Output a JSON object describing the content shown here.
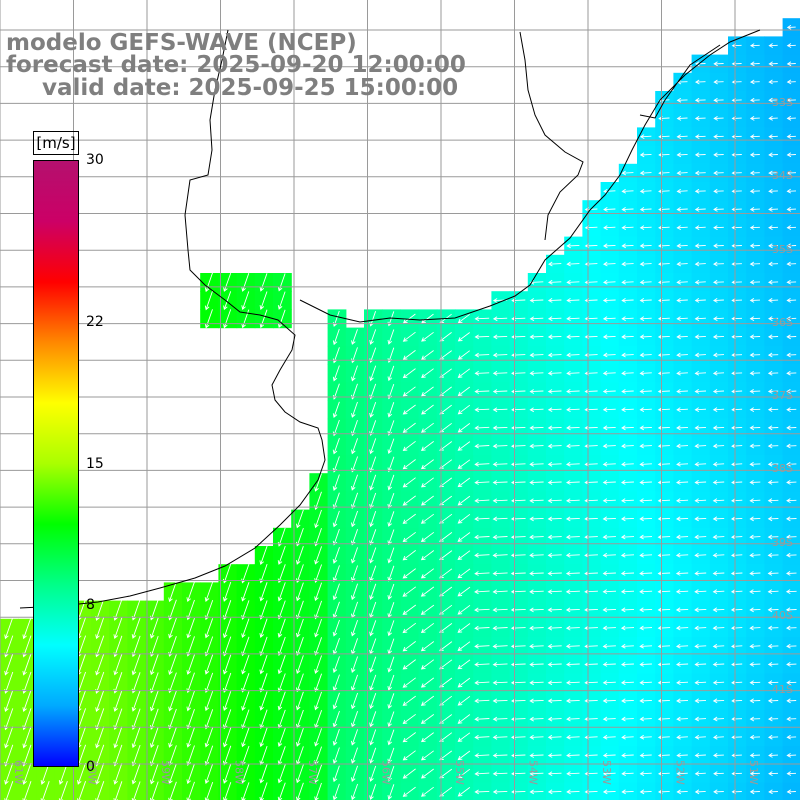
{
  "title": {
    "line1": "modelo GEFS-WAVE (NCEP)",
    "line2": "forecast date: 2025-09-20 12:00:00",
    "line3": "valid date: 2025-09-25 15:00:00"
  },
  "colorbar": {
    "unit": "[m/s]",
    "min": 0,
    "max": 30,
    "ticks": [
      "30",
      "22",
      "15",
      "8",
      "0"
    ],
    "tick_values": [
      30,
      22,
      15,
      8,
      0
    ],
    "stops": [
      "#0000ff",
      "#00aaff",
      "#00ffff",
      "#00ff88",
      "#00ff00",
      "#aaff00",
      "#ffff00",
      "#ff8800",
      "#ff0000",
      "#cc0066",
      "#b4106e"
    ]
  },
  "map": {
    "lat_labels": [
      "33S",
      "34S",
      "35S",
      "36S",
      "37S",
      "38S",
      "39S",
      "40S",
      "41S"
    ],
    "lon_labels": [
      "61W",
      "60W",
      "59W",
      "58W",
      "57W",
      "56W",
      "55W",
      "54W",
      "53W",
      "52W",
      "51W"
    ],
    "lat_range": [
      -41.0,
      -31.0
    ],
    "lon_range": [
      -61.2,
      -50.5
    ],
    "land_color": "#ffffff",
    "grid_color": "#9a9a9a",
    "coast_color": "#000000"
  }
}
